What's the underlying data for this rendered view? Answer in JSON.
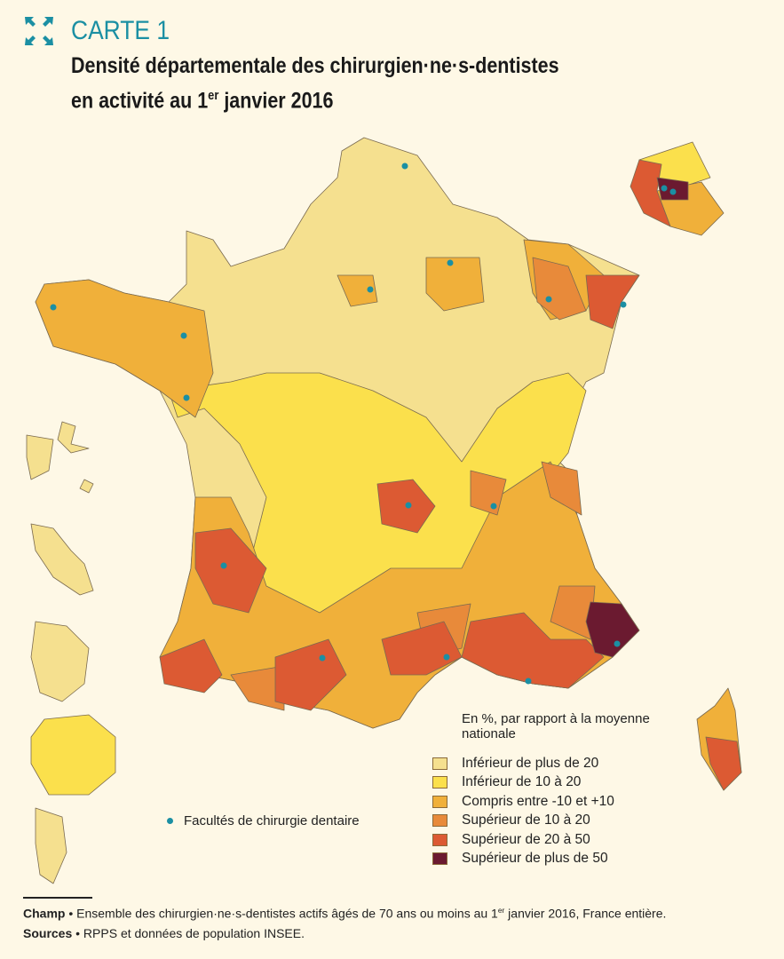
{
  "header": {
    "label": "CARTE 1",
    "title_line1": "Densité départementale des chirurgien·ne·s-dentistes",
    "title_line2_pre": "en activité au 1",
    "title_line2_sup": "er",
    "title_line2_post": " janvier 2016",
    "icon": "expand-icon"
  },
  "legend": {
    "heading": "En %, par rapport à la moyenne nationale",
    "items": [
      {
        "label": "Inférieur de plus de 20",
        "color": "#f5e08f"
      },
      {
        "label": "Inférieur de 10 à 20",
        "color": "#fbe04c"
      },
      {
        "label": "Compris entre -10 et +10",
        "color": "#f0b03a"
      },
      {
        "label": "Supérieur de 10 à 20",
        "color": "#e88a3a"
      },
      {
        "label": "Supérieur de 20 à 50",
        "color": "#dc5a33"
      },
      {
        "label": "Supérieur de plus de 50",
        "color": "#6b1a30"
      }
    ],
    "faculties_label": "Facultés de chirurgie dentaire",
    "dot_color": "#1b8fa3"
  },
  "footer": {
    "champ_label": "Champ",
    "champ_pre": " • Ensemble des chirurgien·ne·s-dentistes actifs âgés de 70 ans ou moins au 1",
    "champ_sup": "er",
    "champ_post": " janvier 2016, France entière.",
    "sources_label": "Sources",
    "sources_text": " • RPPS et données de population INSEE."
  }
}
